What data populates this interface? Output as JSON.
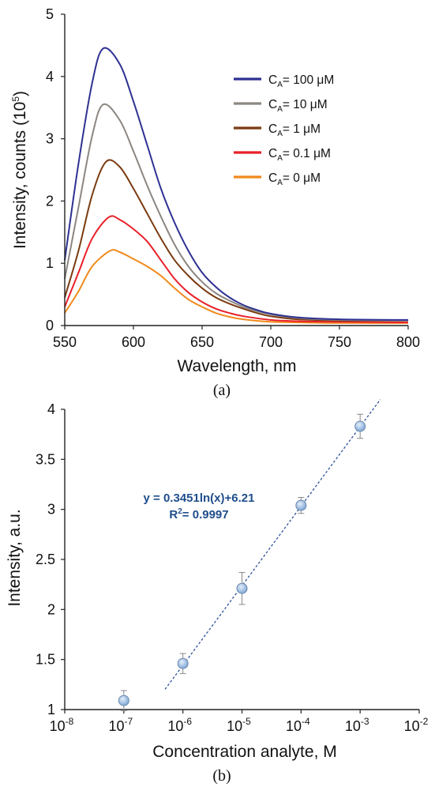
{
  "chart_data": [
    {
      "type": "line",
      "panel_label": "(a)",
      "xlabel": "Wavelength, nm",
      "ylabel": "Intensity, counts (10",
      "ylabel_sup": "5",
      "ylabel_close": ")",
      "xlim": [
        550,
        800
      ],
      "ylim": [
        0,
        5
      ],
      "xticks": [
        "550",
        "600",
        "650",
        "700",
        "750",
        "800"
      ],
      "yticks": [
        "0",
        "1",
        "2",
        "3",
        "4",
        "5"
      ],
      "grid": false,
      "legend_position": "upper-right",
      "series": [
        {
          "name_main": "C",
          "name_sub": "A",
          "name_rest": "= 100 μM",
          "color": "#2e3192",
          "x": [
            550,
            560,
            570,
            578,
            590,
            600,
            610,
            620,
            630,
            640,
            650,
            660,
            670,
            680,
            690,
            700,
            720,
            750,
            800
          ],
          "y": [
            1.05,
            2.6,
            3.9,
            4.45,
            4.2,
            3.6,
            2.9,
            2.2,
            1.65,
            1.2,
            0.85,
            0.62,
            0.45,
            0.33,
            0.25,
            0.19,
            0.13,
            0.1,
            0.09
          ]
        },
        {
          "name_main": "C",
          "name_sub": "A",
          "name_rest": "= 10 μM",
          "color": "#8c8681",
          "x": [
            550,
            560,
            570,
            578,
            590,
            600,
            610,
            620,
            630,
            640,
            650,
            660,
            670,
            680,
            690,
            700,
            720,
            750,
            800
          ],
          "y": [
            0.75,
            1.9,
            3.05,
            3.55,
            3.3,
            2.8,
            2.25,
            1.75,
            1.3,
            0.95,
            0.7,
            0.52,
            0.4,
            0.3,
            0.23,
            0.18,
            0.12,
            0.09,
            0.08
          ]
        },
        {
          "name_main": "C",
          "name_sub": "A",
          "name_rest": "= 1 μM",
          "color": "#7a3a10",
          "x": [
            550,
            560,
            570,
            580,
            590,
            600,
            610,
            620,
            630,
            640,
            650,
            660,
            670,
            680,
            690,
            700,
            720,
            750,
            800
          ],
          "y": [
            0.45,
            1.2,
            2.1,
            2.63,
            2.55,
            2.2,
            1.8,
            1.4,
            1.05,
            0.8,
            0.6,
            0.45,
            0.35,
            0.27,
            0.2,
            0.15,
            0.1,
            0.08,
            0.08
          ]
        },
        {
          "name_main": "C",
          "name_sub": "A",
          "name_rest": "= 0.1 μM",
          "color": "#e8202a",
          "x": [
            550,
            560,
            570,
            582,
            590,
            600,
            610,
            620,
            630,
            640,
            650,
            660,
            670,
            680,
            700,
            720,
            750,
            800
          ],
          "y": [
            0.3,
            0.85,
            1.4,
            1.74,
            1.7,
            1.55,
            1.35,
            1.05,
            0.75,
            0.53,
            0.38,
            0.27,
            0.2,
            0.15,
            0.09,
            0.07,
            0.06,
            0.05
          ]
        },
        {
          "name_main": "C",
          "name_sub": "A",
          "name_rest": "= 0 μM",
          "color": "#f08a1c",
          "x": [
            550,
            560,
            570,
            583,
            590,
            600,
            610,
            620,
            630,
            640,
            650,
            660,
            670,
            680,
            700,
            720,
            750,
            800
          ],
          "y": [
            0.2,
            0.55,
            0.95,
            1.2,
            1.18,
            1.07,
            0.95,
            0.8,
            0.6,
            0.42,
            0.3,
            0.2,
            0.14,
            0.1,
            0.06,
            0.05,
            0.04,
            0.04
          ]
        }
      ]
    },
    {
      "type": "scatter",
      "panel_label": "(b)",
      "xlabel": "Concentration analyte, M",
      "ylabel": "Intensity, a.u.",
      "xscale": "log",
      "xlim_exp": [
        -8,
        -2
      ],
      "ylim": [
        1,
        4
      ],
      "xtick_base": "10",
      "xtick_exponents": [
        "-8",
        "-7",
        "-6",
        "-5",
        "-4",
        "-3",
        "-2"
      ],
      "yticks": [
        "1",
        "1.5",
        "2",
        "2.5",
        "3",
        "3.5",
        "4"
      ],
      "grid": false,
      "points": {
        "x": [
          1e-07,
          1e-06,
          1e-05,
          0.0001,
          0.001
        ],
        "y": [
          1.09,
          1.46,
          2.21,
          3.04,
          3.83
        ],
        "err": [
          0.1,
          0.1,
          0.16,
          0.08,
          0.12
        ],
        "color": "#7fa7d6"
      },
      "fit": {
        "equation": "y = 0.3451ln(x)+6.21",
        "r2_prefix": "R",
        "r2_sup": "2",
        "r2_value": "= 0.9997",
        "slope": 0.3451,
        "intercept": 6.21,
        "x_range": [
          5e-07,
          0.0022
        ],
        "color": "#2e4f9c"
      }
    }
  ]
}
